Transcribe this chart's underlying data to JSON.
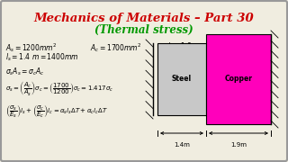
{
  "title1": "Mechanics of Materials – Part 30",
  "title2": "(Thermal stress)",
  "title1_color": "#cc0000",
  "title2_color": "#009900",
  "bg_color": "#f0ede0",
  "text_color": "#000000",
  "steel_color": "#c8c8c8",
  "copper_color": "#ff00bb",
  "steel_label": "Steel",
  "copper_label": "Copper",
  "label_14": "1.4m",
  "label_19": "1.9m",
  "border_color": "#999999",
  "hatch_color": "#555555"
}
